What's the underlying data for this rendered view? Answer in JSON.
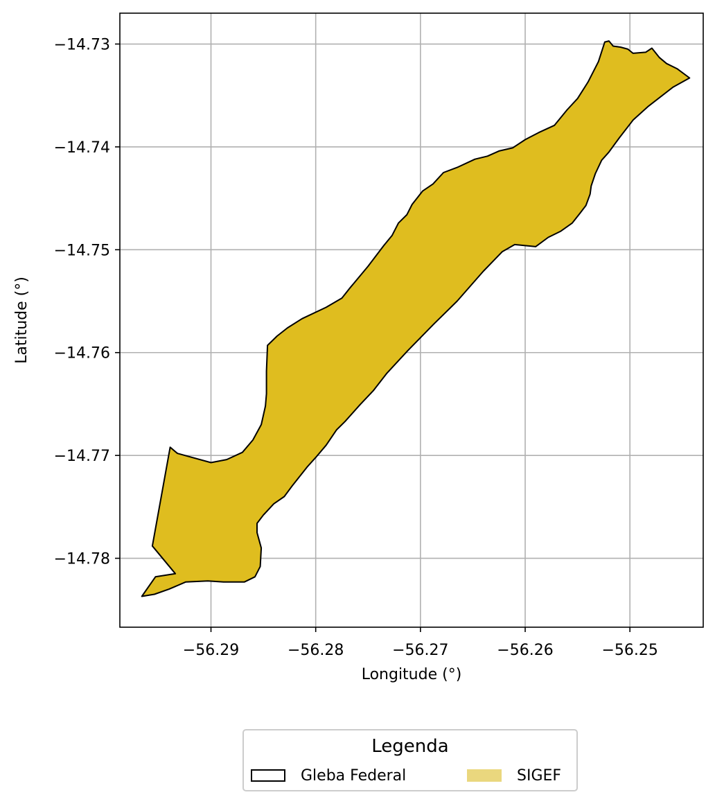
{
  "map": {
    "xlabel": "Longitude (°)",
    "ylabel": "Latitude (°)",
    "xticks": [
      "−56.29",
      "−56.28",
      "−56.27",
      "−56.26",
      "−56.25"
    ],
    "yticks": [
      "−14.73",
      "−14.74",
      "−14.75",
      "−14.76",
      "−14.77",
      "−14.78"
    ],
    "xlim": [
      -56.2987,
      -56.243
    ],
    "ylim": [
      -14.7867,
      -14.727
    ],
    "grid": true,
    "fill_color": "#dfbd1f",
    "edge_color": "#000000"
  },
  "chart_data": {
    "type": "map",
    "xlabel": "Longitude (°)",
    "ylabel": "Latitude (°)",
    "xlim": [
      -56.2987,
      -56.243
    ],
    "ylim": [
      -14.7867,
      -14.727
    ],
    "grid": true,
    "layers": [
      {
        "name": "SIGEF",
        "geometry": "polygon",
        "fill": "#dfbd1f",
        "edge": "#000000",
        "coordinates": [
          [
            -56.2524,
            -14.7298
          ],
          [
            -56.252,
            -14.7297
          ],
          [
            -56.2516,
            -14.7302
          ],
          [
            -56.2509,
            -14.7303
          ],
          [
            -56.2502,
            -14.7305
          ],
          [
            -56.2497,
            -14.7309
          ],
          [
            -56.2485,
            -14.7308
          ],
          [
            -56.2479,
            -14.7304
          ],
          [
            -56.2472,
            -14.7313
          ],
          [
            -56.2465,
            -14.7319
          ],
          [
            -56.2455,
            -14.7324
          ],
          [
            -56.2443,
            -14.7333
          ],
          [
            -56.2459,
            -14.7342
          ],
          [
            -56.2483,
            -14.7361
          ],
          [
            -56.2497,
            -14.7374
          ],
          [
            -56.251,
            -14.7391
          ],
          [
            -56.252,
            -14.7405
          ],
          [
            -56.2527,
            -14.7413
          ],
          [
            -56.2533,
            -14.7426
          ],
          [
            -56.2537,
            -14.7438
          ],
          [
            -56.2538,
            -14.7446
          ],
          [
            -56.2542,
            -14.7457
          ],
          [
            -56.2548,
            -14.7465
          ],
          [
            -56.2555,
            -14.7474
          ],
          [
            -56.2566,
            -14.7482
          ],
          [
            -56.2578,
            -14.7488
          ],
          [
            -56.259,
            -14.7497
          ],
          [
            -56.26,
            -14.7496
          ],
          [
            -56.261,
            -14.7495
          ],
          [
            -56.2622,
            -14.7502
          ],
          [
            -56.264,
            -14.7521
          ],
          [
            -56.2665,
            -14.755
          ],
          [
            -56.2687,
            -14.7572
          ],
          [
            -56.2712,
            -14.7598
          ],
          [
            -56.2732,
            -14.762
          ],
          [
            -56.2745,
            -14.7637
          ],
          [
            -56.2758,
            -14.7651
          ],
          [
            -56.2772,
            -14.7667
          ],
          [
            -56.278,
            -14.7675
          ],
          [
            -56.279,
            -14.769
          ],
          [
            -56.28,
            -14.7702
          ],
          [
            -56.2808,
            -14.7711
          ],
          [
            -56.2822,
            -14.7729
          ],
          [
            -56.283,
            -14.774
          ],
          [
            -56.284,
            -14.7747
          ],
          [
            -56.285,
            -14.7758
          ],
          [
            -56.2856,
            -14.7766
          ],
          [
            -56.2856,
            -14.7775
          ],
          [
            -56.2852,
            -14.779
          ],
          [
            -56.2853,
            -14.7808
          ],
          [
            -56.2858,
            -14.7818
          ],
          [
            -56.2868,
            -14.7823
          ],
          [
            -56.2888,
            -14.7823
          ],
          [
            -56.2903,
            -14.7822
          ],
          [
            -56.2924,
            -14.7823
          ],
          [
            -56.294,
            -14.783
          ],
          [
            -56.2954,
            -14.7835
          ],
          [
            -56.2966,
            -14.7837
          ],
          [
            -56.2953,
            -14.7818
          ],
          [
            -56.2934,
            -14.7815
          ],
          [
            -56.2956,
            -14.7788
          ],
          [
            -56.2939,
            -14.7692
          ],
          [
            -56.2932,
            -14.7698
          ],
          [
            -56.29,
            -14.7707
          ],
          [
            -56.2885,
            -14.7704
          ],
          [
            -56.287,
            -14.7697
          ],
          [
            -56.286,
            -14.7685
          ],
          [
            -56.2852,
            -14.767
          ],
          [
            -56.2848,
            -14.7652
          ],
          [
            -56.2847,
            -14.764
          ],
          [
            -56.2847,
            -14.7618
          ],
          [
            -56.2846,
            -14.7593
          ],
          [
            -56.2837,
            -14.7584
          ],
          [
            -56.2827,
            -14.7576
          ],
          [
            -56.2813,
            -14.7567
          ],
          [
            -56.279,
            -14.7556
          ],
          [
            -56.2775,
            -14.7547
          ],
          [
            -56.2768,
            -14.7538
          ],
          [
            -56.275,
            -14.7516
          ],
          [
            -56.2735,
            -14.7496
          ],
          [
            -56.2727,
            -14.7486
          ],
          [
            -56.2721,
            -14.7474
          ],
          [
            -56.2713,
            -14.7466
          ],
          [
            -56.2708,
            -14.7456
          ],
          [
            -56.2698,
            -14.7443
          ],
          [
            -56.2688,
            -14.7436
          ],
          [
            -56.2678,
            -14.7425
          ],
          [
            -56.2665,
            -14.742
          ],
          [
            -56.2648,
            -14.7412
          ],
          [
            -56.2636,
            -14.7409
          ],
          [
            -56.2625,
            -14.7404
          ],
          [
            -56.2612,
            -14.7401
          ],
          [
            -56.26,
            -14.7393
          ],
          [
            -56.2587,
            -14.7386
          ],
          [
            -56.2572,
            -14.7379
          ],
          [
            -56.256,
            -14.7364
          ],
          [
            -56.255,
            -14.7353
          ],
          [
            -56.254,
            -14.7337
          ],
          [
            -56.253,
            -14.7317
          ],
          [
            -56.2524,
            -14.7298
          ]
        ]
      },
      {
        "name": "Gleba Federal",
        "geometry": "outline",
        "fill": "none",
        "edge": "#000000"
      }
    ]
  },
  "legend": {
    "title": "Legenda",
    "items": [
      {
        "label": "Gleba Federal",
        "fill": "#ffffff",
        "edge": "#000000"
      },
      {
        "label": "SIGEF",
        "fill": "#ead77e",
        "edge": "#ead77e"
      }
    ]
  }
}
